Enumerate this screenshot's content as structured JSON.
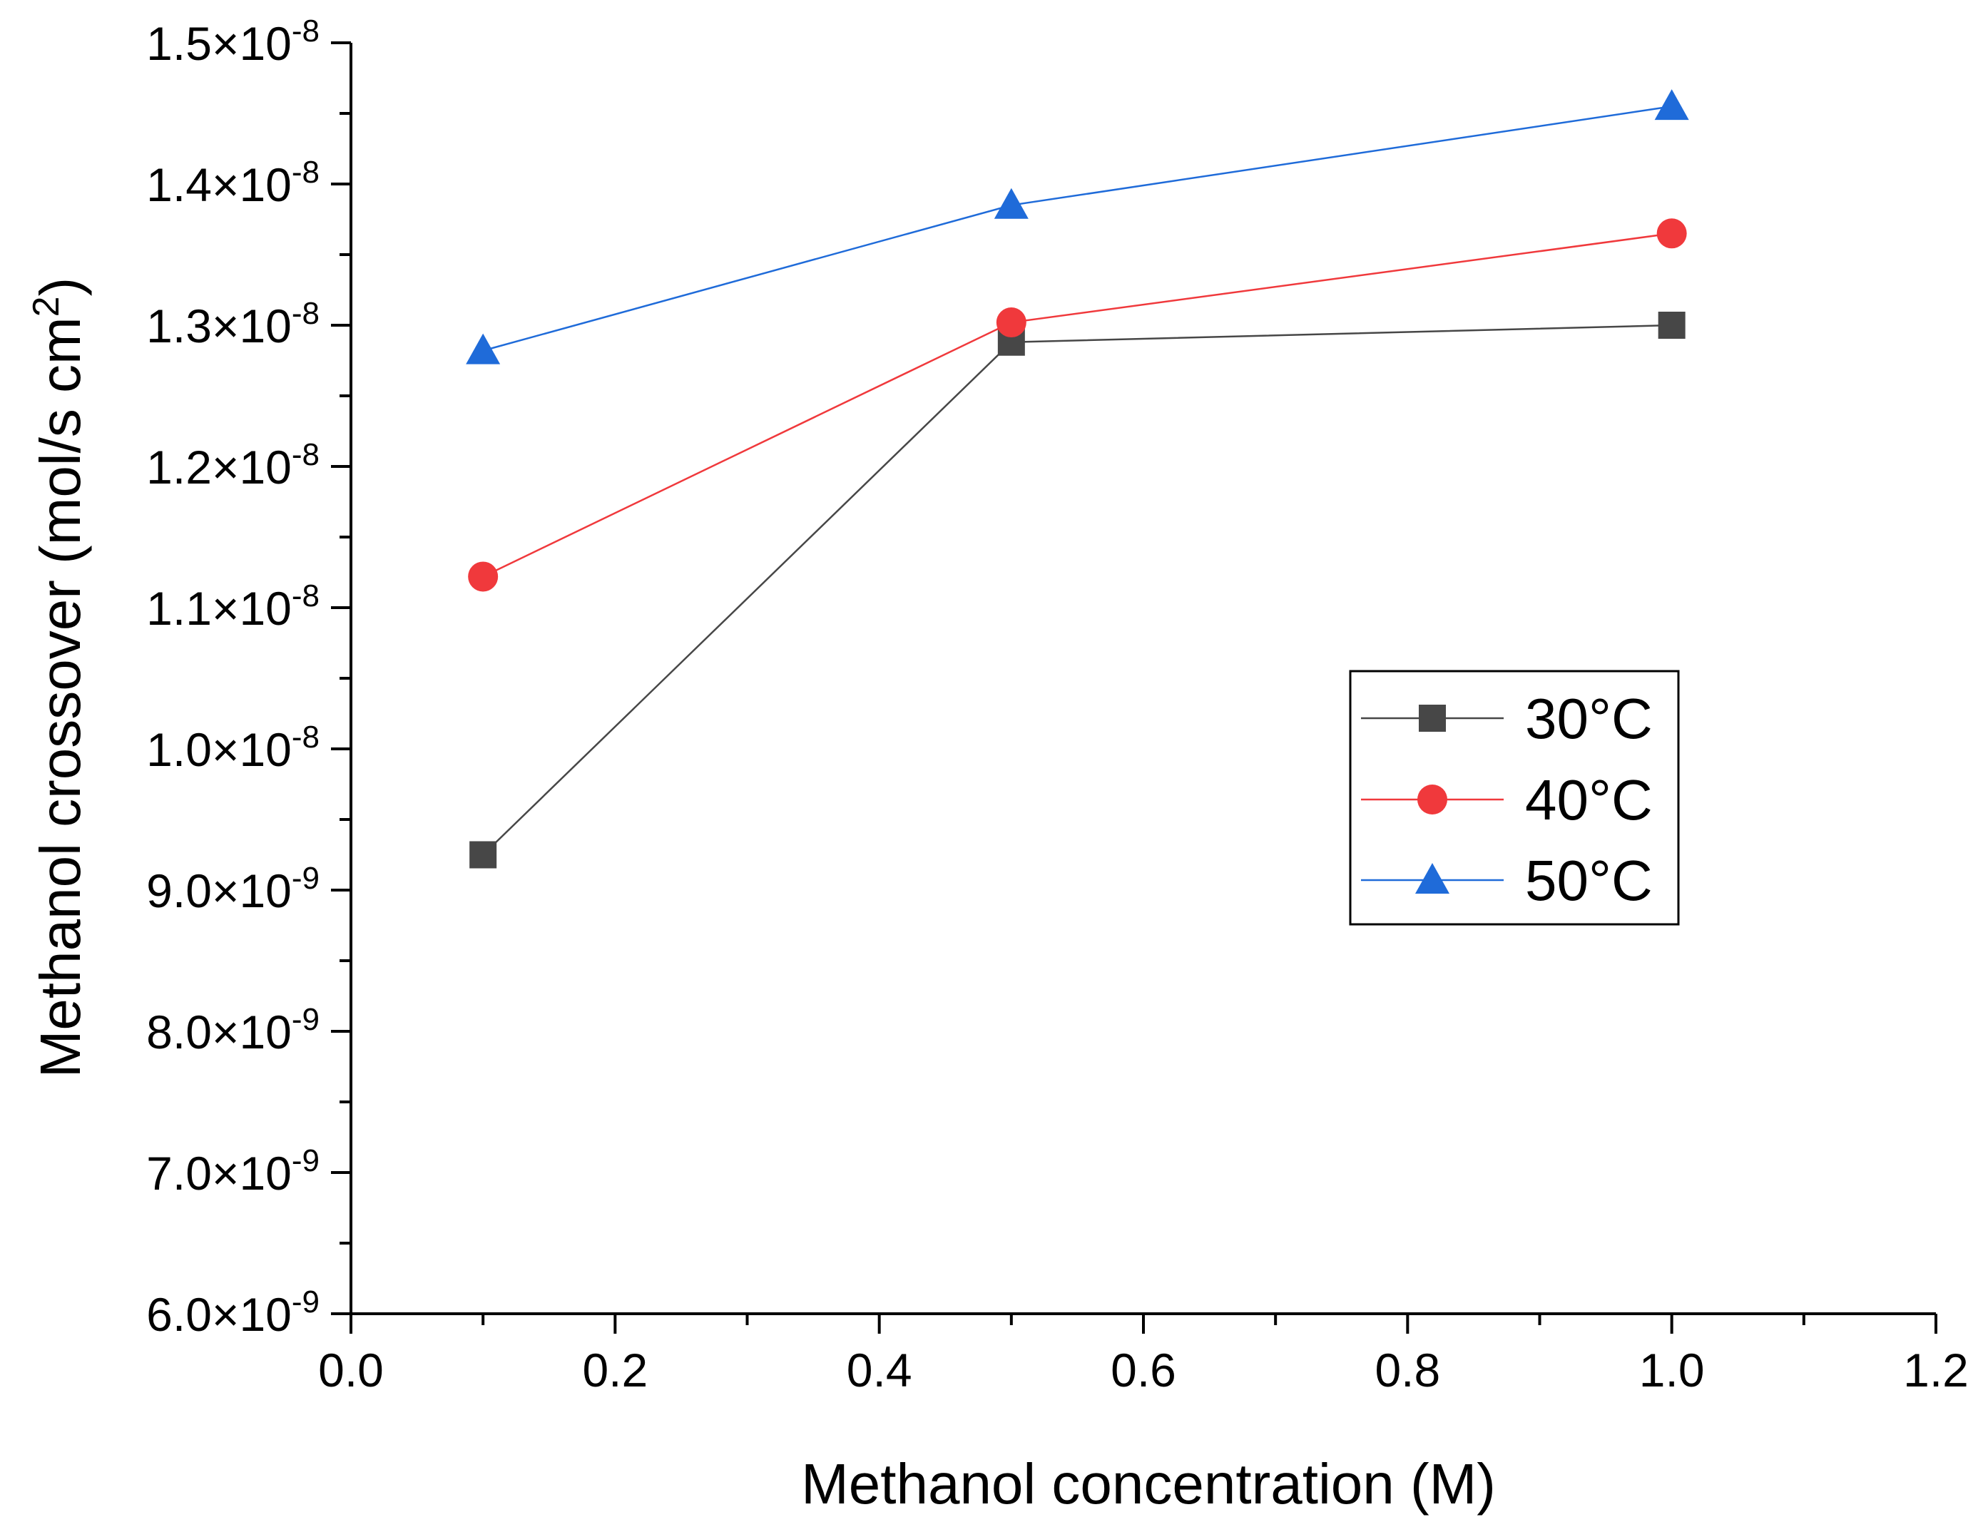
{
  "chart_data": {
    "type": "line",
    "xlabel": "Methanol concentration (M)",
    "ylabel_main": "Methanol crossover (mol/s cm",
    "ylabel_sup": "2",
    "ylabel_close": ")",
    "xlim": [
      0.0,
      1.2
    ],
    "ylim": [
      6e-09,
      1.5e-08
    ],
    "x_ticks": [
      0.0,
      0.2,
      0.4,
      0.6,
      0.8,
      1.0,
      1.2
    ],
    "x_tick_labels": [
      "0.0",
      "0.2",
      "0.4",
      "0.6",
      "0.8",
      "1.0",
      "1.2"
    ],
    "y_ticks": [
      6e-09,
      7e-09,
      8e-09,
      9e-09,
      1e-08,
      1.1e-08,
      1.2e-08,
      1.3e-08,
      1.4e-08,
      1.5e-08
    ],
    "y_tick_labels": [
      {
        "mantissa": "6.0×10",
        "exp": "-9"
      },
      {
        "mantissa": "7.0×10",
        "exp": "-9"
      },
      {
        "mantissa": "8.0×10",
        "exp": "-9"
      },
      {
        "mantissa": "9.0×10",
        "exp": "-9"
      },
      {
        "mantissa": "1.0×10",
        "exp": "-8"
      },
      {
        "mantissa": "1.1×10",
        "exp": "-8"
      },
      {
        "mantissa": "1.2×10",
        "exp": "-8"
      },
      {
        "mantissa": "1.3×10",
        "exp": "-8"
      },
      {
        "mantissa": "1.4×10",
        "exp": "-8"
      },
      {
        "mantissa": "1.5×10",
        "exp": "-8"
      }
    ],
    "x": [
      0.1,
      0.5,
      1.0
    ],
    "series": [
      {
        "name": "30°C",
        "marker": "square",
        "color": "#474747",
        "values": [
          9.25e-09,
          1.288e-08,
          1.3e-08
        ]
      },
      {
        "name": "40°C",
        "marker": "circle",
        "color": "#f0393c",
        "values": [
          1.122e-08,
          1.302e-08,
          1.365e-08
        ]
      },
      {
        "name": "50°C",
        "marker": "triangle",
        "color": "#1f6bd9",
        "values": [
          1.282e-08,
          1.385e-08,
          1.455e-08
        ]
      }
    ],
    "legend_position": "center-right",
    "grid": false
  }
}
